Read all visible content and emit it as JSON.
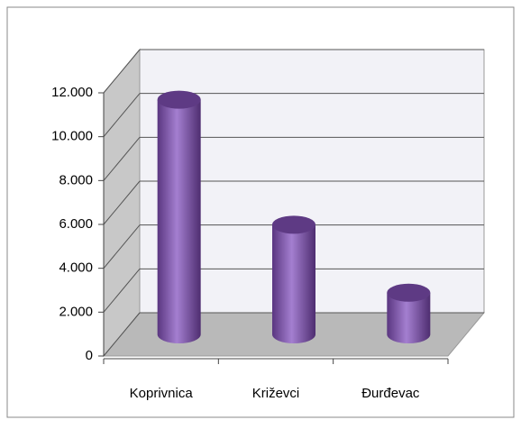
{
  "chart_data": {
    "type": "bar3d",
    "categories": [
      "Koprivnica",
      "Križevci",
      "Đurđevac"
    ],
    "values": [
      10700,
      5000,
      1900
    ],
    "color": "#7b4fa6",
    "ylim": [
      0,
      12000
    ],
    "yticks": [
      0,
      {
        "value": 2000,
        "label": "2.000"
      },
      {
        "value": 4000,
        "label": "4.000"
      },
      {
        "value": 6000,
        "label": "6.000"
      },
      {
        "value": 8000,
        "label": "8.000"
      },
      {
        "value": 10000,
        "label": "10.000"
      },
      {
        "value": 12000,
        "label": "12.000"
      }
    ],
    "grid": true
  }
}
